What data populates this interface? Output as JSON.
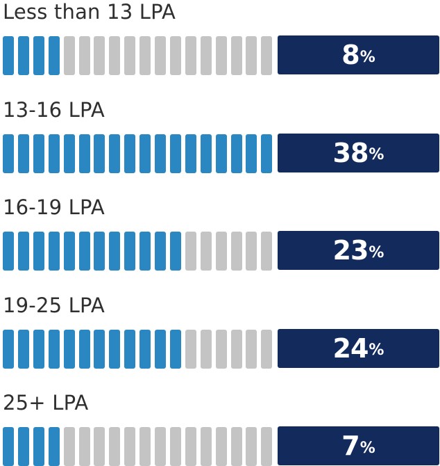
{
  "chart_data": {
    "type": "bar",
    "title": "",
    "categories": [
      "Less than 13 LPA",
      "13-16 LPA",
      "16-19 LPA",
      "19-25 LPA",
      "25+ LPA"
    ],
    "values": [
      8,
      38,
      23,
      24,
      7
    ],
    "value_labels": [
      "8",
      "38",
      "23",
      "24",
      "7"
    ],
    "unit": "%",
    "filled_segments": [
      4,
      18,
      12,
      12,
      4
    ],
    "total_segments": 18,
    "colors": {
      "filled": "#2a87c2",
      "empty": "#c4c4c4",
      "label_box": "#122a5c",
      "label_text": "#ffffff",
      "category_text": "#2f2f2f"
    }
  }
}
